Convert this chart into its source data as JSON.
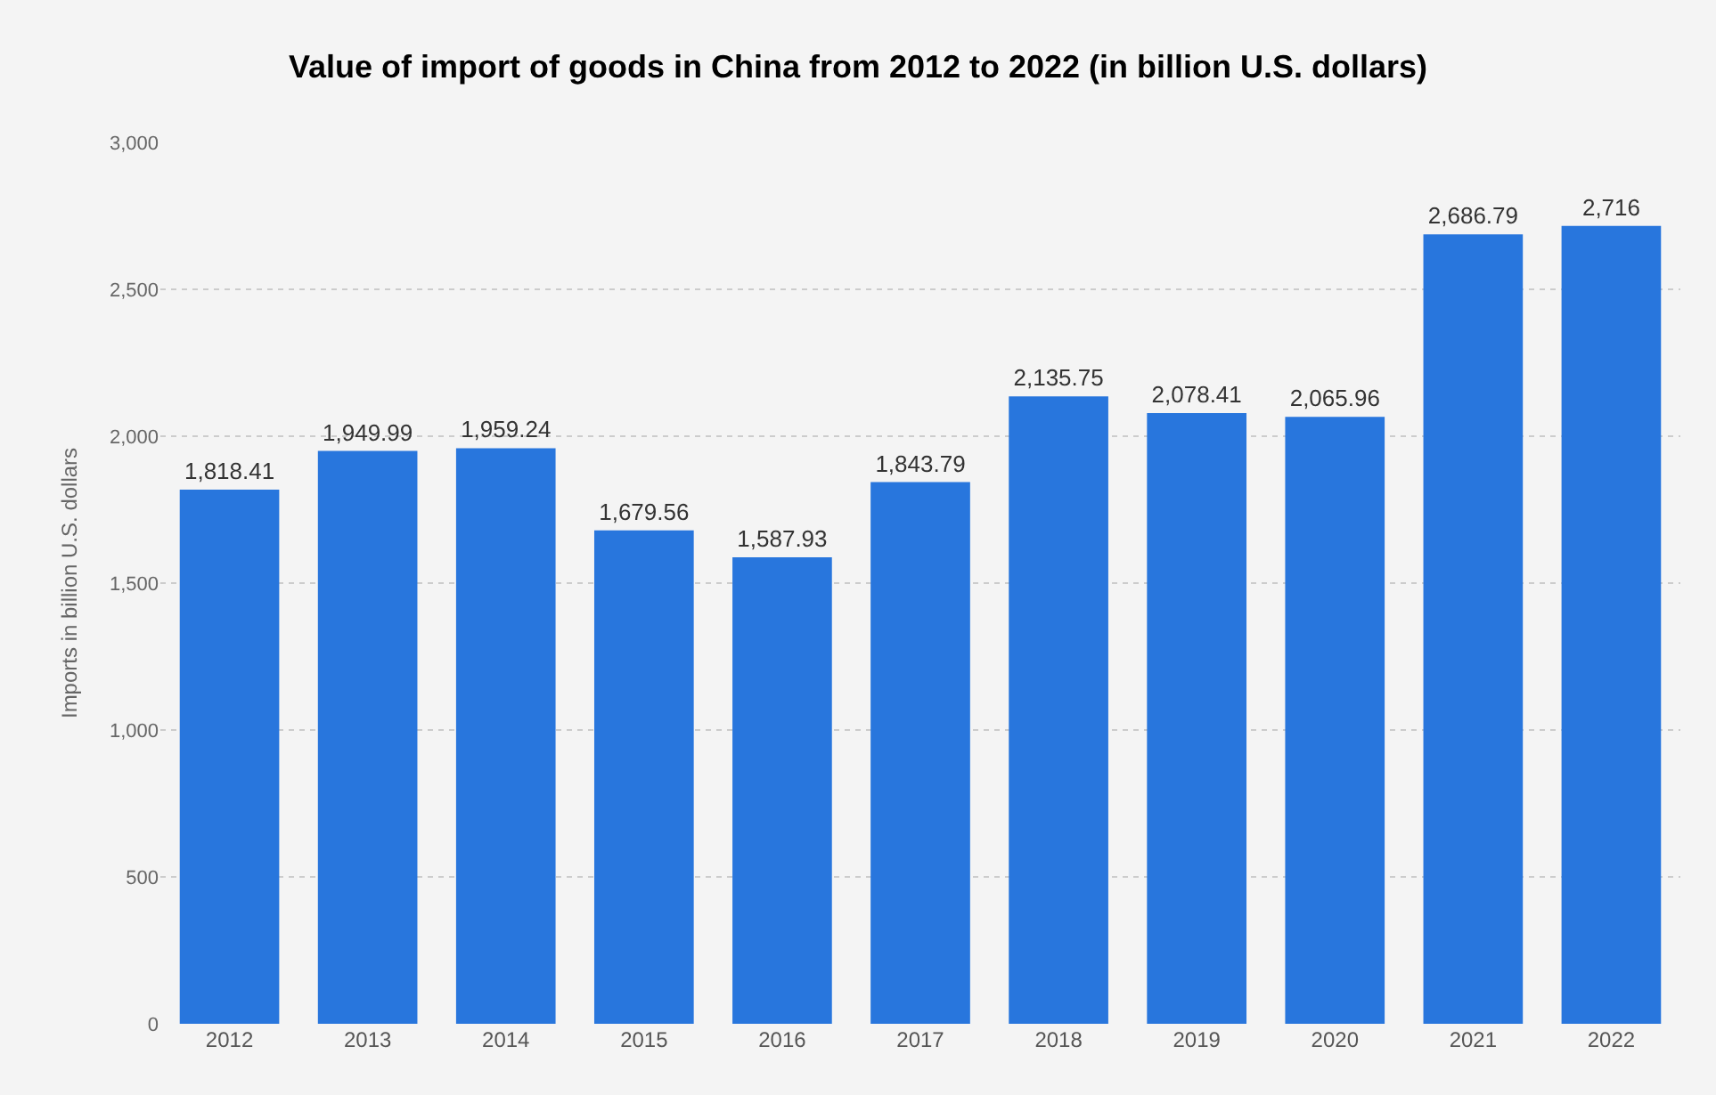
{
  "chart_data": {
    "type": "bar",
    "title": "Value of import of goods in China from 2012 to 2022 (in billion U.S. dollars)",
    "ylabel": "Imports in billion U.S. dollars",
    "categories": [
      "2012",
      "2013",
      "2014",
      "2015",
      "2016",
      "2017",
      "2018",
      "2019",
      "2020",
      "2021",
      "2022"
    ],
    "values": [
      1818.41,
      1949.99,
      1959.24,
      1679.56,
      1587.93,
      1843.79,
      2135.75,
      2078.41,
      2065.96,
      2686.79,
      2716
    ],
    "value_labels": [
      "1,818.41",
      "1,949.99",
      "1,959.24",
      "1,679.56",
      "1,587.93",
      "1,843.79",
      "2,135.75",
      "2,078.41",
      "2,065.96",
      "2,686.79",
      "2,716"
    ],
    "color": "#2876dd",
    "ylim": [
      0,
      3000
    ],
    "yticks": [
      {
        "value": 0,
        "label": "0"
      },
      {
        "value": 500,
        "label": "500"
      },
      {
        "value": 1000,
        "label": "1,000"
      },
      {
        "value": 1500,
        "label": "1,500"
      },
      {
        "value": 2000,
        "label": "2,000"
      },
      {
        "value": 2500,
        "label": "2,500"
      },
      {
        "value": 3000,
        "label": "3,000"
      }
    ],
    "grid": "y"
  }
}
